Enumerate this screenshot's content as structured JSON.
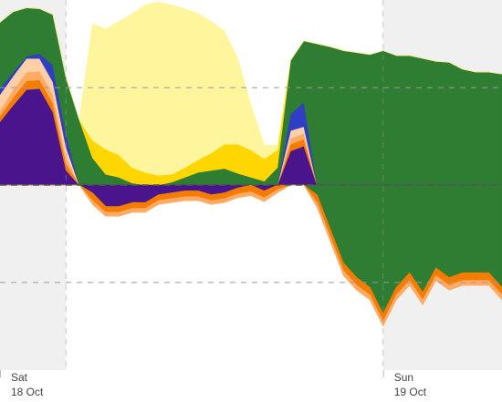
{
  "chart_data": {
    "type": "area",
    "stacking": "stacked-with-negatives",
    "title": "",
    "xlabel": "",
    "ylabel": "",
    "x_unit": "hour",
    "xlim": [
      0,
      38
    ],
    "ylim": [
      -19,
      19
    ],
    "grid": {
      "horizontal_dashed": [
        -10,
        0,
        10
      ],
      "vertical_dashed": [
        5,
        29
      ]
    },
    "night_bands": [
      [
        0,
        5
      ],
      [
        29,
        38
      ]
    ],
    "x_ticks": [
      {
        "x": 0,
        "day": "Sat",
        "date": "18 Oct"
      },
      {
        "x": 29,
        "day": "Sun",
        "date": "19 Oct"
      }
    ],
    "colors": {
      "night_band": "#f0f0f0",
      "grid": "#9a9a9a",
      "zero_line": "#555555",
      "tick_label": "#444444"
    },
    "x": [
      0,
      1,
      2,
      3,
      4,
      5,
      6,
      7,
      8,
      9,
      10,
      11,
      12,
      13,
      14,
      15,
      16,
      17,
      18,
      19,
      20,
      21,
      22,
      23,
      24,
      25,
      26,
      27,
      28,
      29,
      30,
      31,
      32,
      33,
      34,
      35,
      36,
      37,
      38
    ],
    "series": [
      {
        "key": "s_purple",
        "color": "#4a148c",
        "sign": "pos",
        "values": [
          6.5,
          8.2,
          9.8,
          9.9,
          7.5,
          1.5,
          0,
          0,
          0,
          0,
          0,
          0,
          0,
          0,
          0,
          0,
          0,
          0,
          0,
          0,
          0,
          0,
          3.5,
          4.0,
          0,
          0,
          0,
          0,
          0,
          0,
          0,
          0,
          0,
          0,
          0,
          0,
          0,
          0,
          0
        ]
      },
      {
        "key": "s_orange",
        "color": "#f57c00",
        "sign": "pos",
        "values": [
          0.6,
          0.8,
          0.9,
          0.9,
          0.9,
          0.7,
          0,
          0,
          0,
          0,
          0,
          0,
          0,
          0,
          0,
          0,
          0,
          0,
          0,
          0,
          0,
          0,
          0.7,
          0.7,
          0,
          0,
          0,
          0,
          0,
          0,
          0,
          0,
          0,
          0,
          0,
          0,
          0,
          0,
          0
        ]
      },
      {
        "key": "s_light_orange",
        "color": "#ffab66",
        "sign": "pos",
        "values": [
          0.6,
          0.8,
          0.9,
          0.9,
          0.9,
          0.7,
          0,
          0,
          0,
          0,
          0,
          0,
          0,
          0,
          0,
          0,
          0,
          0,
          0,
          0,
          0,
          0,
          0.6,
          0.6,
          0,
          0,
          0,
          0,
          0,
          0,
          0,
          0,
          0,
          0,
          0,
          0,
          0,
          0,
          0
        ]
      },
      {
        "key": "s_peach",
        "color": "#ffcfa8",
        "sign": "pos",
        "values": [
          1.6,
          1.4,
          1.4,
          1.3,
          1.3,
          1.0,
          0,
          0,
          0,
          0,
          0,
          0,
          0,
          0,
          0,
          0,
          0,
          0,
          0,
          0,
          0,
          0,
          0.8,
          0.7,
          0,
          0,
          0,
          0,
          0,
          0,
          0,
          0,
          0,
          0,
          0,
          0,
          0,
          0,
          0
        ]
      },
      {
        "key": "s_blue",
        "color": "#2f3fc4",
        "sign": "pos",
        "values": [
          0.6,
          0.4,
          0.2,
          0.5,
          1.7,
          1.3,
          0,
          0,
          0,
          0,
          0,
          0,
          0,
          0,
          0,
          0,
          0,
          0,
          0,
          0,
          0,
          0,
          1.7,
          2.5,
          0,
          0,
          0,
          0,
          0,
          0,
          0,
          0,
          0,
          0,
          0,
          0,
          0,
          0,
          0
        ]
      },
      {
        "key": "s_green",
        "color": "#2e7d32",
        "sign": "pos",
        "values": [
          6.8,
          6.2,
          5.0,
          4.6,
          5.2,
          5.8,
          6.7,
          2.8,
          1.1,
          0.8,
          0.2,
          0,
          0,
          0.3,
          0.8,
          1.3,
          1.5,
          1.7,
          1.2,
          0.8,
          0.4,
          1.8,
          5.5,
          6.3,
          14.5,
          14.2,
          13.8,
          13.6,
          13.4,
          13.8,
          13.3,
          13.3,
          13.0,
          12.7,
          12.6,
          11.9,
          11.6,
          11.6,
          11.4
        ]
      },
      {
        "key": "s_gold",
        "color": "#ffd600",
        "sign": "pos",
        "values": [
          0,
          0,
          0,
          0,
          0,
          0,
          0,
          1.8,
          2.6,
          2.3,
          1.6,
          1.3,
          1.0,
          0.8,
          1.0,
          1.3,
          1.8,
          2.5,
          3.0,
          2.8,
          2.3,
          1.8,
          0,
          0,
          0,
          0,
          0,
          0,
          0,
          0,
          0,
          0,
          0,
          0,
          0,
          0,
          0,
          0,
          0
        ]
      },
      {
        "key": "s_pale_yellow",
        "color": "#fff59d",
        "sign": "pos",
        "values": [
          0,
          0,
          0,
          0,
          0,
          0,
          0,
          12.0,
          12.3,
          13.7,
          15.8,
          17.2,
          17.8,
          17.4,
          16.3,
          15.0,
          13.5,
          11.6,
          8.8,
          4.6,
          1.4,
          0.5,
          0,
          0,
          0,
          0,
          0,
          0,
          0,
          0,
          0,
          0,
          0,
          0,
          0,
          0,
          0,
          0,
          0
        ]
      },
      {
        "key": "n_purple",
        "color": "#4a148c",
        "sign": "neg",
        "values": [
          0,
          0,
          0,
          0,
          0,
          0,
          0,
          -0.8,
          -2.2,
          -2.2,
          -1.8,
          -1.8,
          -1.0,
          -0.8,
          -0.6,
          -0.6,
          -1.0,
          -0.8,
          -0.3,
          0,
          -0.6,
          0,
          0,
          0,
          0,
          0,
          0,
          0,
          0,
          0,
          0,
          0,
          0,
          0,
          0,
          0,
          0,
          0,
          0
        ]
      },
      {
        "key": "n_green",
        "color": "#2e7d32",
        "sign": "neg",
        "values": [
          0,
          0,
          0,
          0,
          0,
          0,
          0,
          0,
          0,
          0,
          0,
          0,
          0,
          0,
          0,
          0,
          0,
          0,
          0,
          0,
          0,
          0,
          0,
          0,
          -1.0,
          -4.5,
          -8.0,
          -9.5,
          -10.5,
          -13.2,
          -10.5,
          -9.0,
          -11.0,
          -8.5,
          -9.5,
          -9.0,
          -9.0,
          -9.0,
          -10.5
        ]
      },
      {
        "key": "n_orange",
        "color": "#f57c00",
        "sign": "neg",
        "values": [
          0,
          0,
          0,
          0,
          0,
          0,
          0,
          -0.8,
          -0.6,
          -0.6,
          -0.6,
          -0.6,
          -0.6,
          -0.6,
          -0.6,
          -0.6,
          -0.6,
          -0.6,
          -0.6,
          -0.7,
          -0.7,
          -0.5,
          0,
          0,
          -0.8,
          -0.8,
          -0.8,
          -0.8,
          -0.8,
          -0.8,
          -0.8,
          -0.8,
          -0.8,
          -0.8,
          -0.8,
          -0.8,
          -0.8,
          -0.8,
          -0.8
        ]
      },
      {
        "key": "n_light_orange",
        "color": "#ffab66",
        "sign": "neg",
        "values": [
          0,
          0,
          0,
          0,
          0,
          0,
          0,
          -0.4,
          -0.4,
          -0.4,
          -0.4,
          -0.4,
          -0.4,
          -0.4,
          -0.4,
          -0.4,
          -0.4,
          -0.4,
          -0.4,
          -0.4,
          -0.4,
          -0.3,
          0,
          0,
          -0.5,
          -0.5,
          -0.5,
          -0.5,
          -0.5,
          -0.5,
          -0.5,
          -0.5,
          -0.5,
          -0.5,
          -0.5,
          -0.5,
          -0.5,
          -0.5,
          -0.5
        ]
      }
    ]
  }
}
